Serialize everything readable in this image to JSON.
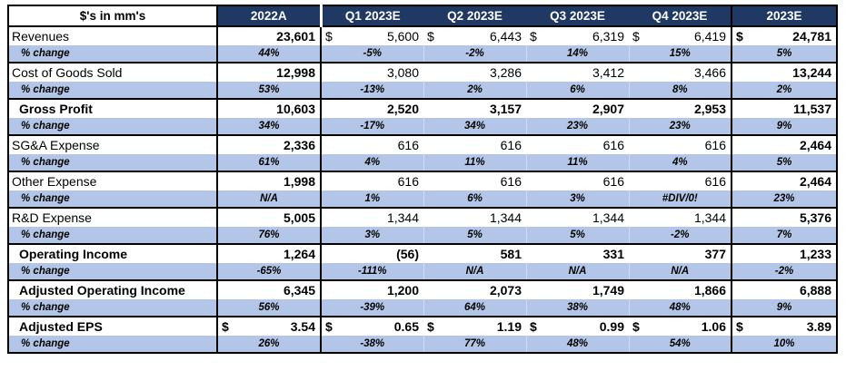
{
  "currency_symbol": "$",
  "colors": {
    "header_bg": "#1F3864",
    "header_text": "#FFFFFF",
    "pct_row_bg": "#B4C6E7",
    "border": "#000000"
  },
  "header": {
    "unit_label": "$'s in mm's",
    "periods": [
      "2022A",
      "Q1 2023E",
      "Q2 2023E",
      "Q3 2023E",
      "Q4 2023E",
      "2023E"
    ]
  },
  "rows": [
    {
      "label": "Revenues",
      "emphasis": false,
      "values": [
        "23,601",
        "5,600",
        "6,443",
        "6,319",
        "6,419",
        "24,781"
      ],
      "dollar_signs": [
        false,
        true,
        true,
        true,
        true,
        true
      ],
      "pct_label": "% change",
      "pct_values": [
        "44%",
        "-5%",
        "-2%",
        "14%",
        "15%",
        "5%"
      ]
    },
    {
      "label": "Cost of Goods Sold",
      "emphasis": false,
      "values": [
        "12,998",
        "3,080",
        "3,286",
        "3,412",
        "3,466",
        "13,244"
      ],
      "dollar_signs": [
        false,
        false,
        false,
        false,
        false,
        false
      ],
      "pct_label": "% change",
      "pct_values": [
        "53%",
        "-13%",
        "2%",
        "6%",
        "8%",
        "2%"
      ]
    },
    {
      "label": "Gross Profit",
      "emphasis": true,
      "values": [
        "10,603",
        "2,520",
        "3,157",
        "2,907",
        "2,953",
        "11,537"
      ],
      "dollar_signs": [
        false,
        false,
        false,
        false,
        false,
        false
      ],
      "pct_label": "% change",
      "pct_values": [
        "34%",
        "-17%",
        "34%",
        "23%",
        "23%",
        "9%"
      ]
    },
    {
      "label": "SG&A Expense",
      "emphasis": false,
      "values": [
        "2,336",
        "616",
        "616",
        "616",
        "616",
        "2,464"
      ],
      "dollar_signs": [
        false,
        false,
        false,
        false,
        false,
        false
      ],
      "pct_label": "% change",
      "pct_values": [
        "61%",
        "4%",
        "11%",
        "11%",
        "4%",
        "5%"
      ]
    },
    {
      "label": "Other Expense",
      "emphasis": false,
      "values": [
        "1,998",
        "616",
        "616",
        "616",
        "616",
        "2,464"
      ],
      "dollar_signs": [
        false,
        false,
        false,
        false,
        false,
        false
      ],
      "pct_label": "% change",
      "pct_values": [
        "N/A",
        "1%",
        "6%",
        "3%",
        "#DIV/0!",
        "23%"
      ]
    },
    {
      "label": "R&D Expense",
      "emphasis": false,
      "values": [
        "5,005",
        "1,344",
        "1,344",
        "1,344",
        "1,344",
        "5,376"
      ],
      "dollar_signs": [
        false,
        false,
        false,
        false,
        false,
        false
      ],
      "pct_label": "% change",
      "pct_values": [
        "76%",
        "3%",
        "5%",
        "5%",
        "-2%",
        "7%"
      ]
    },
    {
      "label": "Operating Income",
      "emphasis": true,
      "values": [
        "1,264",
        "(56)",
        "581",
        "331",
        "377",
        "1,233"
      ],
      "dollar_signs": [
        false,
        false,
        false,
        false,
        false,
        false
      ],
      "pct_label": "% change",
      "pct_values": [
        "-65%",
        "-111%",
        "N/A",
        "N/A",
        "N/A",
        "-2%"
      ]
    },
    {
      "label": "Adjusted Operating Income",
      "emphasis": true,
      "values": [
        "6,345",
        "1,200",
        "2,073",
        "1,749",
        "1,866",
        "6,888"
      ],
      "dollar_signs": [
        false,
        false,
        false,
        false,
        false,
        false
      ],
      "pct_label": "% change",
      "pct_values": [
        "56%",
        "-39%",
        "64%",
        "38%",
        "48%",
        "9%"
      ]
    },
    {
      "label": "Adjusted EPS",
      "emphasis": true,
      "values": [
        "3.54",
        "0.65",
        "1.19",
        "0.99",
        "1.06",
        "3.89"
      ],
      "dollar_signs": [
        true,
        true,
        true,
        true,
        true,
        true
      ],
      "pct_label": "% change",
      "pct_values": [
        "26%",
        "-38%",
        "77%",
        "48%",
        "54%",
        "10%"
      ]
    }
  ]
}
